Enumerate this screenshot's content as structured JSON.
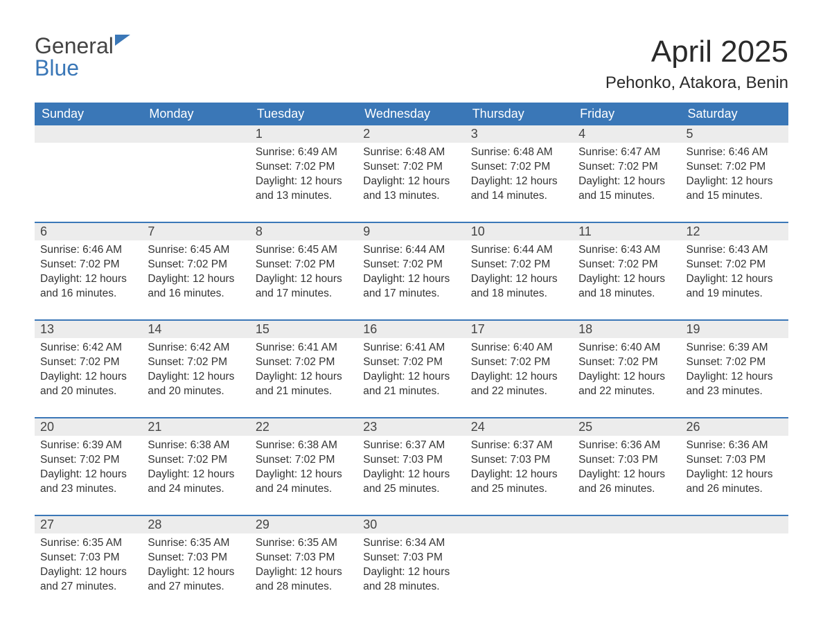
{
  "brand": {
    "word1": "General",
    "word2": "Blue"
  },
  "title": "April 2025",
  "location": "Pehonko, Atakora, Benin",
  "colors": {
    "header_bg": "#3a77b7",
    "header_text": "#ffffff",
    "daynum_bg": "#ececec",
    "text": "#333333",
    "rule": "#3a77b7",
    "page_bg": "#ffffff"
  },
  "font": {
    "family": "Arial",
    "title_size_pt": 33,
    "location_size_pt": 18,
    "weekday_size_pt": 14,
    "body_size_pt": 12
  },
  "weekdays": [
    "Sunday",
    "Monday",
    "Tuesday",
    "Wednesday",
    "Thursday",
    "Friday",
    "Saturday"
  ],
  "labels": {
    "sunrise": "Sunrise:",
    "sunset": "Sunset:",
    "daylight": "Daylight:"
  },
  "weeks": [
    [
      {
        "n": "",
        "empty": true
      },
      {
        "n": "",
        "empty": true
      },
      {
        "n": "1",
        "sunrise": "6:49 AM",
        "sunset": "7:02 PM",
        "daylight": "12 hours and 13 minutes."
      },
      {
        "n": "2",
        "sunrise": "6:48 AM",
        "sunset": "7:02 PM",
        "daylight": "12 hours and 13 minutes."
      },
      {
        "n": "3",
        "sunrise": "6:48 AM",
        "sunset": "7:02 PM",
        "daylight": "12 hours and 14 minutes."
      },
      {
        "n": "4",
        "sunrise": "6:47 AM",
        "sunset": "7:02 PM",
        "daylight": "12 hours and 15 minutes."
      },
      {
        "n": "5",
        "sunrise": "6:46 AM",
        "sunset": "7:02 PM",
        "daylight": "12 hours and 15 minutes."
      }
    ],
    [
      {
        "n": "6",
        "sunrise": "6:46 AM",
        "sunset": "7:02 PM",
        "daylight": "12 hours and 16 minutes."
      },
      {
        "n": "7",
        "sunrise": "6:45 AM",
        "sunset": "7:02 PM",
        "daylight": "12 hours and 16 minutes."
      },
      {
        "n": "8",
        "sunrise": "6:45 AM",
        "sunset": "7:02 PM",
        "daylight": "12 hours and 17 minutes."
      },
      {
        "n": "9",
        "sunrise": "6:44 AM",
        "sunset": "7:02 PM",
        "daylight": "12 hours and 17 minutes."
      },
      {
        "n": "10",
        "sunrise": "6:44 AM",
        "sunset": "7:02 PM",
        "daylight": "12 hours and 18 minutes."
      },
      {
        "n": "11",
        "sunrise": "6:43 AM",
        "sunset": "7:02 PM",
        "daylight": "12 hours and 18 minutes."
      },
      {
        "n": "12",
        "sunrise": "6:43 AM",
        "sunset": "7:02 PM",
        "daylight": "12 hours and 19 minutes."
      }
    ],
    [
      {
        "n": "13",
        "sunrise": "6:42 AM",
        "sunset": "7:02 PM",
        "daylight": "12 hours and 20 minutes."
      },
      {
        "n": "14",
        "sunrise": "6:42 AM",
        "sunset": "7:02 PM",
        "daylight": "12 hours and 20 minutes."
      },
      {
        "n": "15",
        "sunrise": "6:41 AM",
        "sunset": "7:02 PM",
        "daylight": "12 hours and 21 minutes."
      },
      {
        "n": "16",
        "sunrise": "6:41 AM",
        "sunset": "7:02 PM",
        "daylight": "12 hours and 21 minutes."
      },
      {
        "n": "17",
        "sunrise": "6:40 AM",
        "sunset": "7:02 PM",
        "daylight": "12 hours and 22 minutes."
      },
      {
        "n": "18",
        "sunrise": "6:40 AM",
        "sunset": "7:02 PM",
        "daylight": "12 hours and 22 minutes."
      },
      {
        "n": "19",
        "sunrise": "6:39 AM",
        "sunset": "7:02 PM",
        "daylight": "12 hours and 23 minutes."
      }
    ],
    [
      {
        "n": "20",
        "sunrise": "6:39 AM",
        "sunset": "7:02 PM",
        "daylight": "12 hours and 23 minutes."
      },
      {
        "n": "21",
        "sunrise": "6:38 AM",
        "sunset": "7:02 PM",
        "daylight": "12 hours and 24 minutes."
      },
      {
        "n": "22",
        "sunrise": "6:38 AM",
        "sunset": "7:02 PM",
        "daylight": "12 hours and 24 minutes."
      },
      {
        "n": "23",
        "sunrise": "6:37 AM",
        "sunset": "7:03 PM",
        "daylight": "12 hours and 25 minutes."
      },
      {
        "n": "24",
        "sunrise": "6:37 AM",
        "sunset": "7:03 PM",
        "daylight": "12 hours and 25 minutes."
      },
      {
        "n": "25",
        "sunrise": "6:36 AM",
        "sunset": "7:03 PM",
        "daylight": "12 hours and 26 minutes."
      },
      {
        "n": "26",
        "sunrise": "6:36 AM",
        "sunset": "7:03 PM",
        "daylight": "12 hours and 26 minutes."
      }
    ],
    [
      {
        "n": "27",
        "sunrise": "6:35 AM",
        "sunset": "7:03 PM",
        "daylight": "12 hours and 27 minutes."
      },
      {
        "n": "28",
        "sunrise": "6:35 AM",
        "sunset": "7:03 PM",
        "daylight": "12 hours and 27 minutes."
      },
      {
        "n": "29",
        "sunrise": "6:35 AM",
        "sunset": "7:03 PM",
        "daylight": "12 hours and 28 minutes."
      },
      {
        "n": "30",
        "sunrise": "6:34 AM",
        "sunset": "7:03 PM",
        "daylight": "12 hours and 28 minutes."
      },
      {
        "n": "",
        "empty": true
      },
      {
        "n": "",
        "empty": true
      },
      {
        "n": "",
        "empty": true
      }
    ]
  ]
}
